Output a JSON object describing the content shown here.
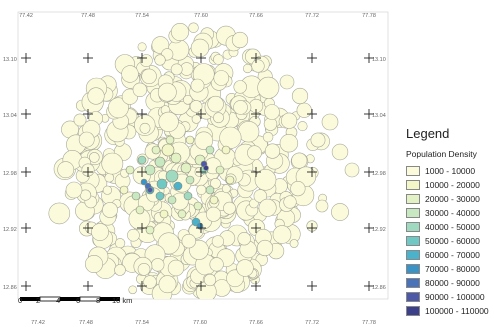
{
  "map": {
    "top_ticks": [
      "77.42",
      "77.48",
      "77.54",
      "77.60",
      "77.66",
      "77.72",
      "77.78"
    ],
    "bottom_ticks": [
      "77.42",
      "77.48",
      "77.54",
      "77.60",
      "77.66",
      "77.72",
      "77.78"
    ],
    "left_ticks": [
      "13.10",
      "13.04",
      "12.98",
      "12.92",
      "12.86"
    ],
    "right_ticks": [
      "13.10",
      "13.04",
      "12.98",
      "12.92",
      "12.86"
    ]
  },
  "legend": {
    "title": "Legend",
    "subtitle": "Population Density",
    "items": [
      {
        "label": "1000 - 10000",
        "color": "#fbfbdc"
      },
      {
        "label": "10000 - 20000",
        "color": "#f3f7c8"
      },
      {
        "label": "20000 - 30000",
        "color": "#e3f2c5"
      },
      {
        "label": "30000 - 40000",
        "color": "#c7e8c0"
      },
      {
        "label": "40000 - 50000",
        "color": "#9fd9c0"
      },
      {
        "label": "50000 - 60000",
        "color": "#6fc8c4"
      },
      {
        "label": "60000 - 70000",
        "color": "#4ab3cb"
      },
      {
        "label": "70000 - 80000",
        "color": "#3b93c5"
      },
      {
        "label": "80000 - 90000",
        "color": "#4a72b8"
      },
      {
        "label": "90000 - 100000",
        "color": "#4d58a6"
      },
      {
        "label": "100000 - 110000",
        "color": "#3c3f8a"
      }
    ]
  },
  "scalebar": {
    "labels": [
      "0",
      "2",
      "4",
      "6",
      "8",
      "10 km"
    ]
  }
}
